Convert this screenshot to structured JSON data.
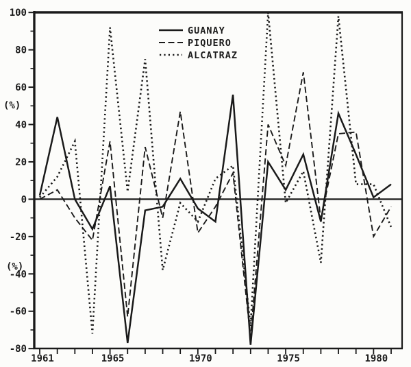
{
  "figure": {
    "ink_color": "#1a1a1a",
    "paper_color": "#fcfcfa"
  },
  "y_axis": {
    "unit_label": "(%)",
    "major_ticks": [
      100,
      80,
      60,
      40,
      20,
      0,
      -20,
      -40,
      -60,
      -80
    ],
    "minor_ticks": [
      90,
      70,
      50,
      30,
      10,
      -10,
      -30,
      -50,
      -70
    ],
    "range": [
      -80,
      100
    ]
  },
  "x_axis": {
    "labeled_years": [
      1961,
      1965,
      1970,
      1975,
      1980
    ],
    "range": [
      1961,
      1981
    ]
  },
  "chart_data": {
    "type": "line",
    "title": "",
    "xlabel": "",
    "ylabel": "(%)",
    "ylim": [
      -80,
      100
    ],
    "grid": false,
    "legend_position": "top-center",
    "x": [
      1961,
      1962,
      1963,
      1964,
      1965,
      1966,
      1967,
      1968,
      1969,
      1970,
      1971,
      1972,
      1973,
      1974,
      1975,
      1976,
      1977,
      1978,
      1979,
      1980,
      1981
    ],
    "series": [
      {
        "name": "GUANAY",
        "style": "solid",
        "values": [
          2,
          44,
          0,
          -16,
          7,
          -77,
          -6,
          -4,
          11,
          -5,
          -12,
          56,
          -78,
          20,
          5,
          24,
          -12,
          46,
          24,
          1,
          8
        ]
      },
      {
        "name": "PIQUERO",
        "style": "dashed",
        "values": [
          0,
          5,
          -10,
          -22,
          31,
          -63,
          28,
          -10,
          47,
          -18,
          -4,
          14,
          -74,
          40,
          18,
          68,
          -11,
          35,
          36,
          -20,
          -4
        ]
      },
      {
        "name": "ALCATRAZ",
        "style": "dotted",
        "values": [
          1,
          12,
          31,
          -72,
          92,
          4,
          75,
          -38,
          -2,
          -12,
          11,
          18,
          -68,
          100,
          -2,
          15,
          -34,
          98,
          8,
          8,
          -15
        ]
      }
    ]
  }
}
